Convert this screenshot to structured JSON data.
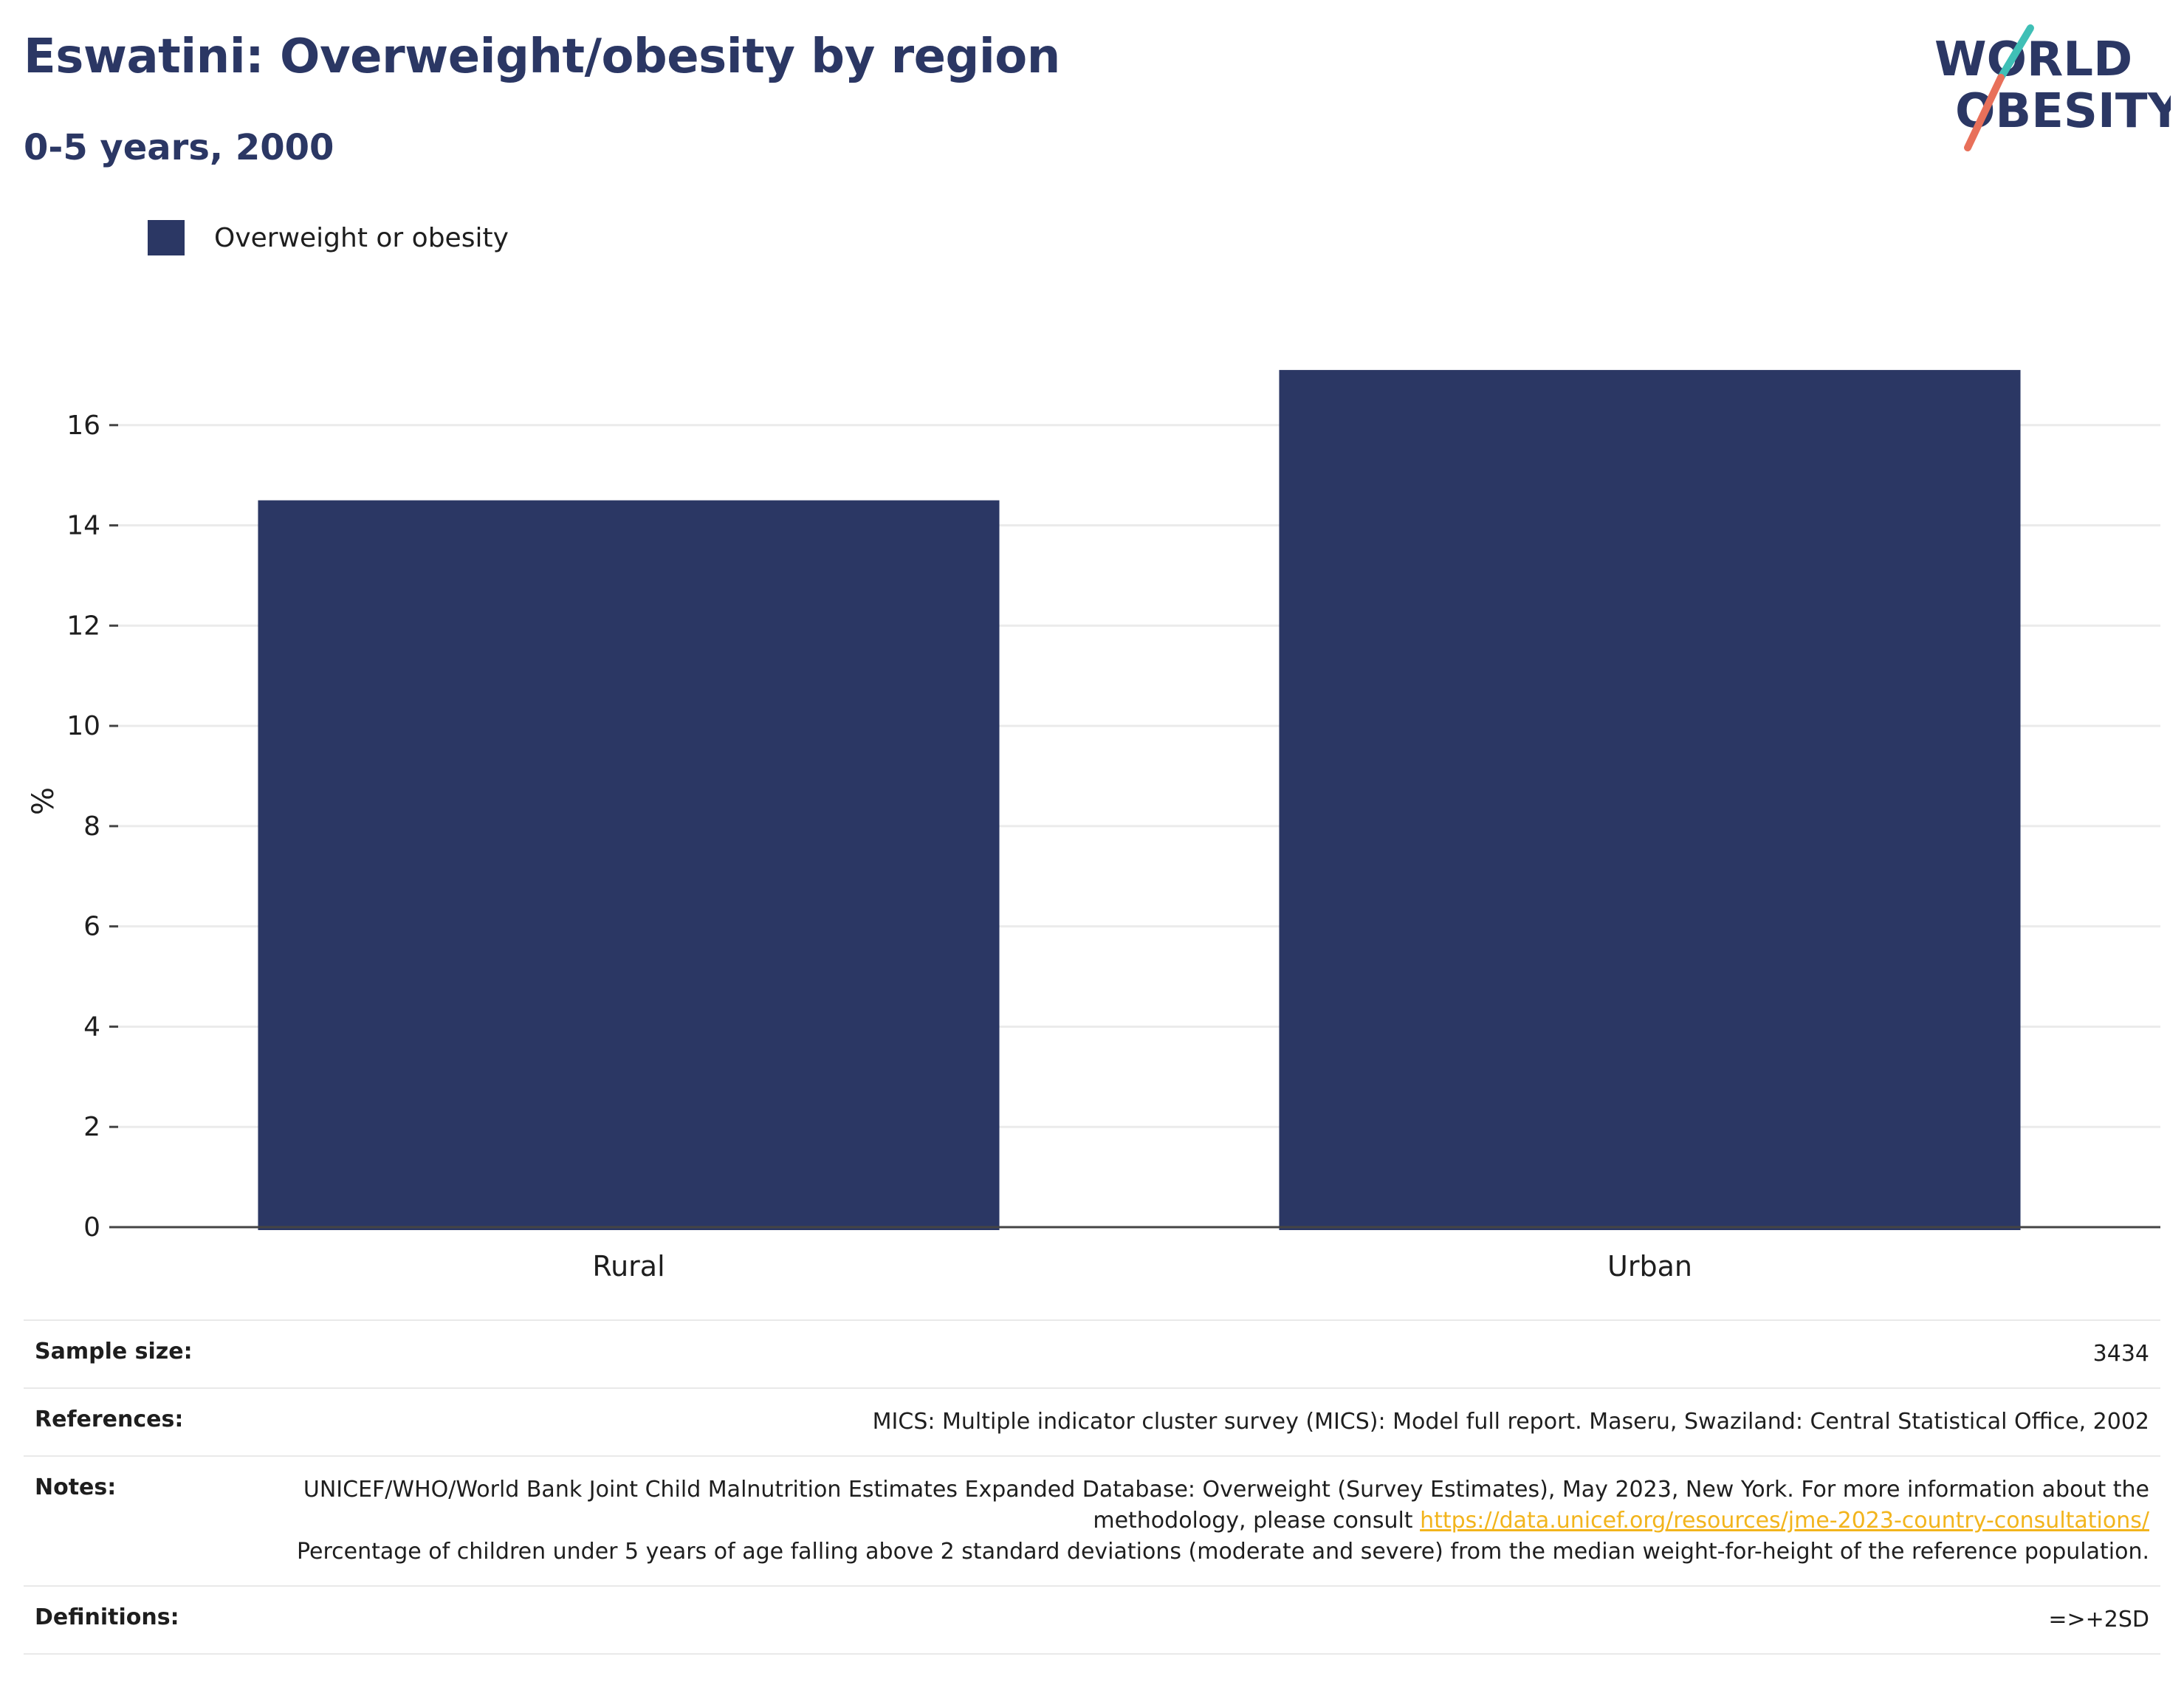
{
  "header": {
    "title": "Eswatini: Overweight/obesity by region",
    "subtitle": "0-5 years, 2000"
  },
  "logo": {
    "line1": "WORLD",
    "line2": "OBESITY",
    "accent_teal": "#3fbfb6",
    "accent_coral": "#e8705a"
  },
  "colors": {
    "bar": "#2b3764",
    "text_dark": "#2b3764",
    "grid": "#ebebeb",
    "link": "#f2b41c"
  },
  "chart_data": {
    "type": "bar",
    "categories": [
      "Rural",
      "Urban"
    ],
    "series": [
      {
        "name": "Overweight or obesity",
        "values": [
          14.5,
          17.1
        ]
      }
    ],
    "ylabel": "%",
    "xlabel": "",
    "ylim": [
      0,
      18
    ],
    "yticks": [
      0,
      2,
      4,
      6,
      8,
      10,
      12,
      14,
      16
    ],
    "grid": true,
    "legend": "top-left"
  },
  "info": {
    "sample_size_label": "Sample size:",
    "sample_size_value": "3434",
    "references_label": "References:",
    "references_value": "MICS: Multiple indicator cluster survey (MICS): Model full report. Maseru, Swaziland: Central Statistical Office, 2002",
    "notes_label": "Notes:",
    "notes_text_1": "UNICEF/WHO/World Bank Joint Child Malnutrition Estimates Expanded Database: Overweight (Survey Estimates), May 2023, New York. For more information about the methodology, please consult ",
    "notes_link": "https://data.unicef.org/resources/jme-2023-country-consultations/",
    "notes_text_2": "Percentage of children under 5 years of age falling above 2 standard deviations (moderate and severe) from the median weight-for-height of the reference population.",
    "definitions_label": "Definitions:",
    "definitions_value": "=>+2SD"
  }
}
